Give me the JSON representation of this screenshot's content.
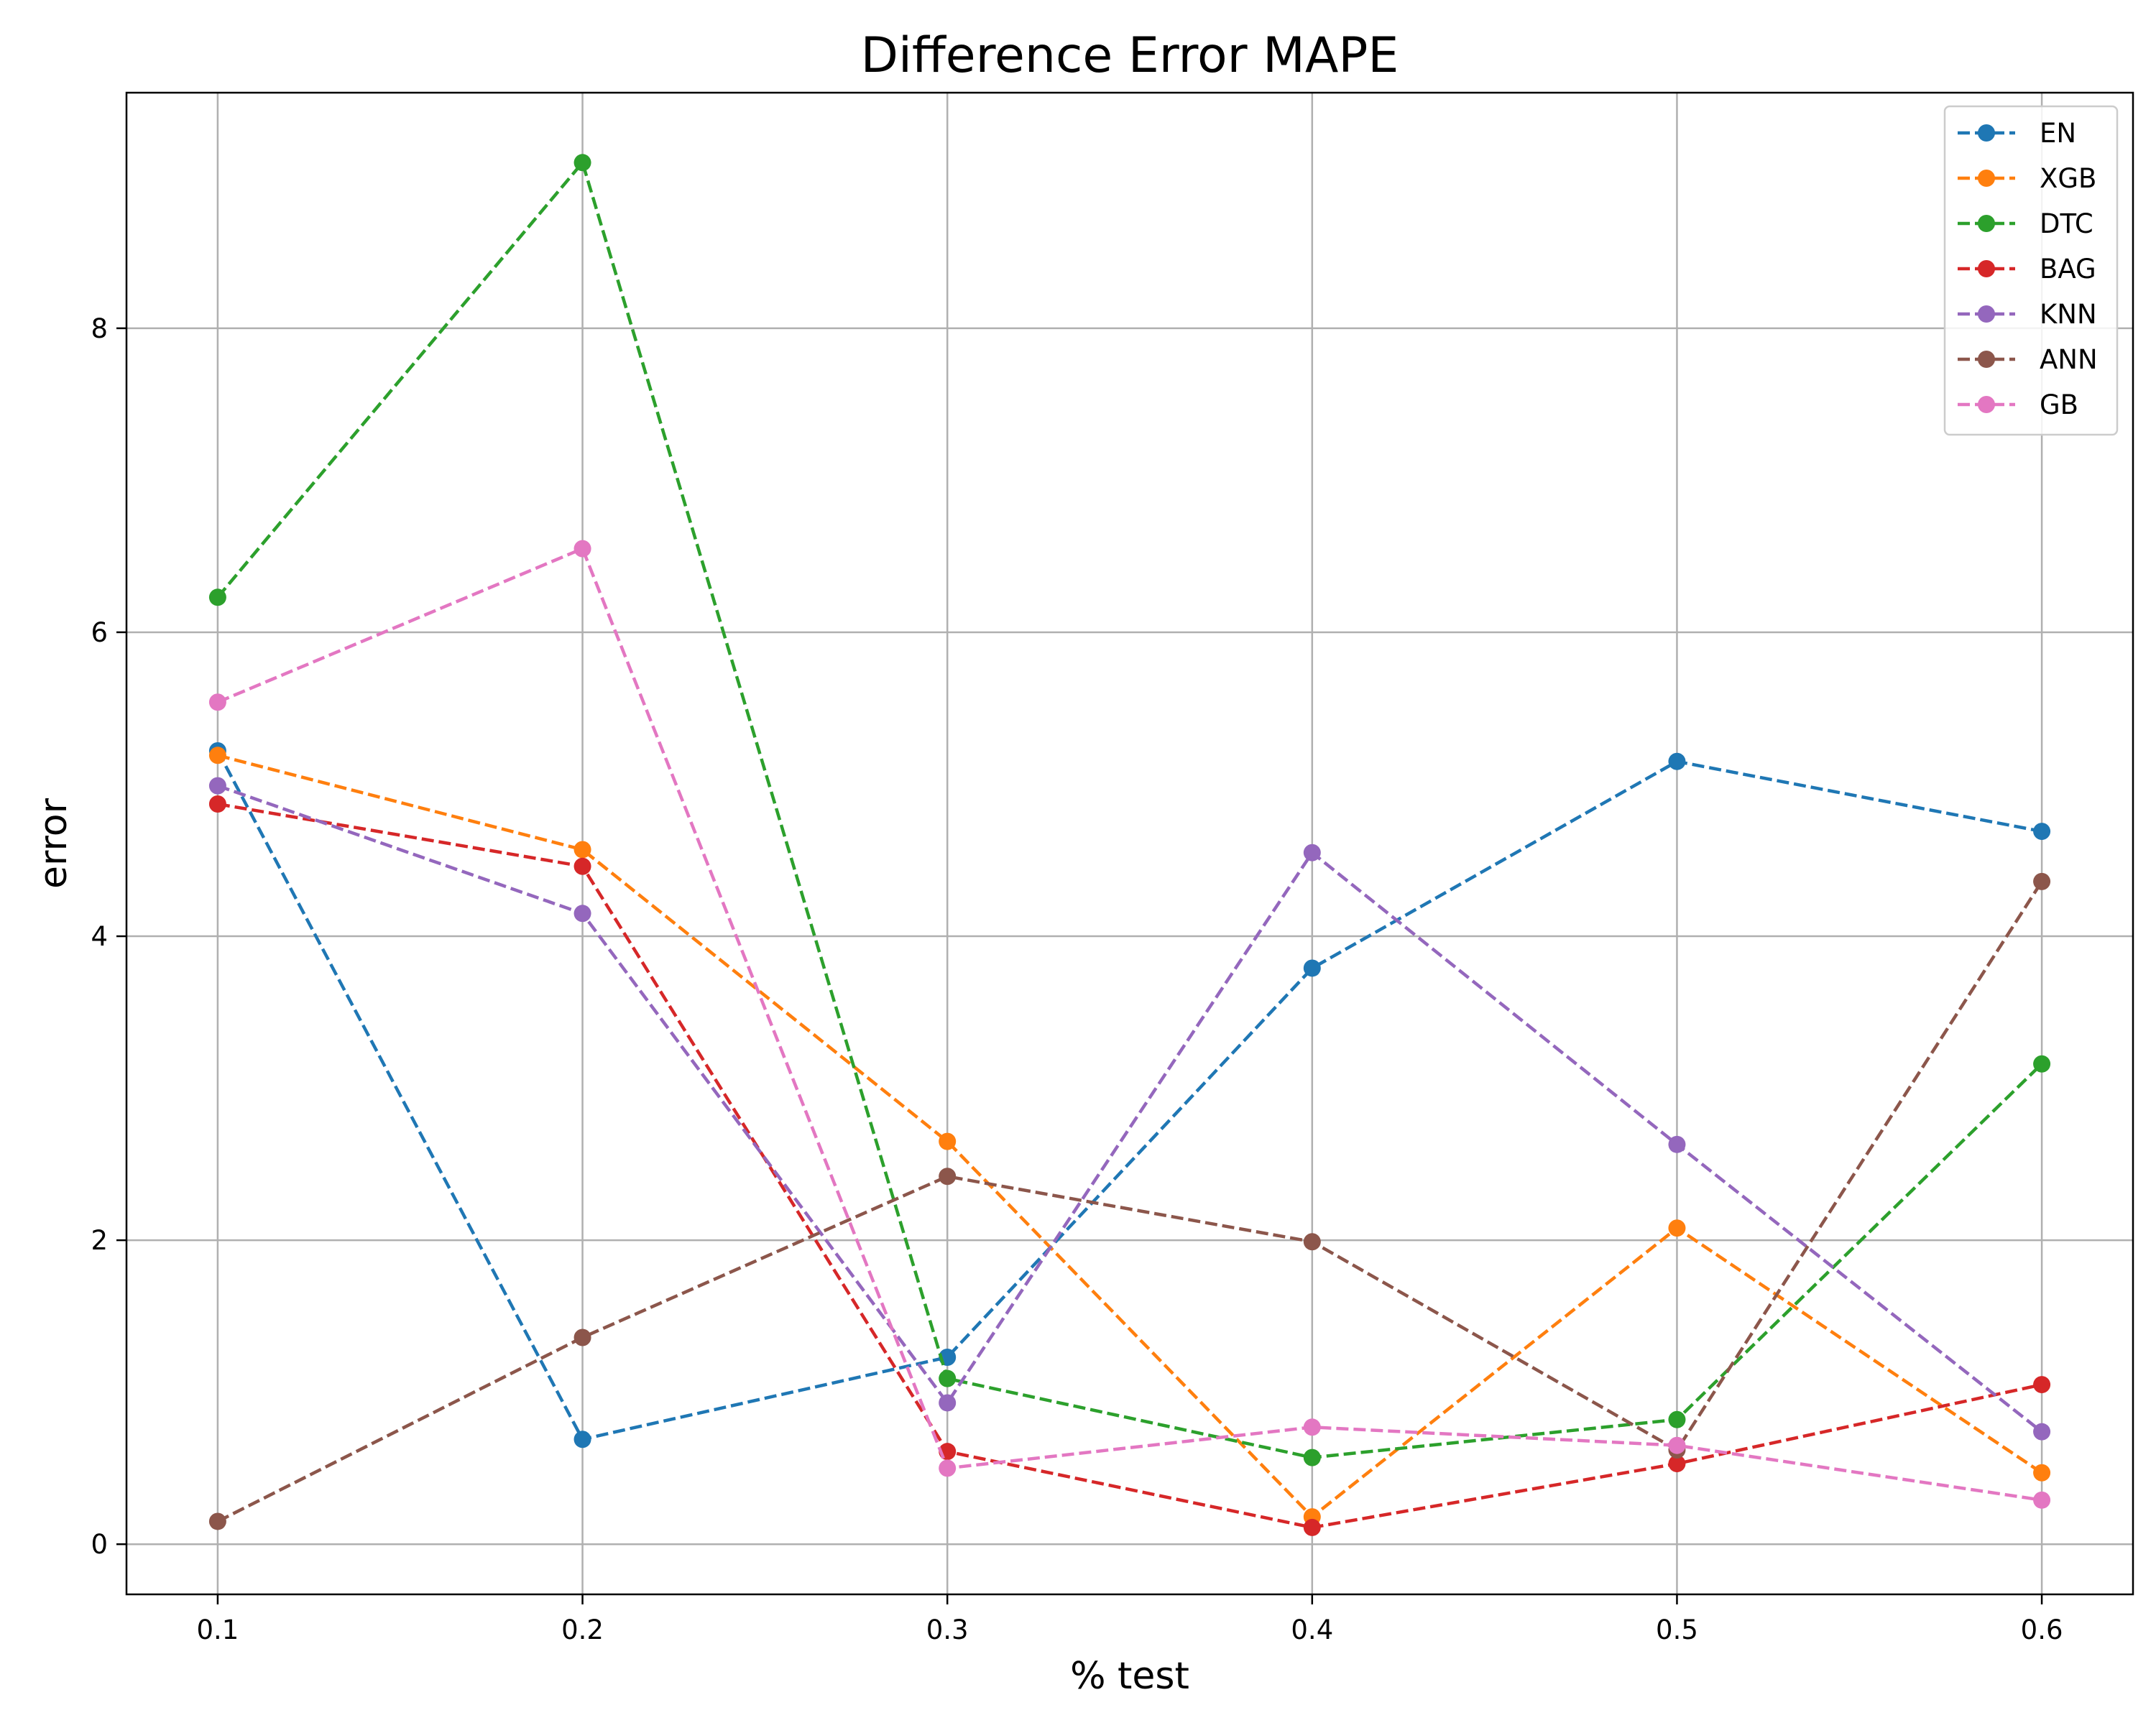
{
  "chart_data": {
    "type": "line",
    "title": "Difference Error MAPE",
    "xlabel": "% test",
    "ylabel": "error",
    "x": [
      0.1,
      0.2,
      0.3,
      0.4,
      0.5,
      0.6
    ],
    "xlim": [
      0.075,
      0.625
    ],
    "ylim": [
      -0.33,
      9.55
    ],
    "xticks": [
      0.1,
      0.2,
      0.3,
      0.4,
      0.5,
      0.6
    ],
    "xtick_labels": [
      "0.1",
      "0.2",
      "0.3",
      "0.4",
      "0.5",
      "0.6"
    ],
    "yticks": [
      0,
      2,
      4,
      6,
      8
    ],
    "ytick_labels": [
      "0",
      "2",
      "4",
      "6",
      "8"
    ],
    "grid": true,
    "legend_position": "top-right",
    "line_style": "dashed",
    "marker": "circle",
    "series": [
      {
        "name": "EN",
        "color": "#1f77b4",
        "values": [
          5.22,
          0.69,
          1.23,
          3.79,
          5.15,
          4.69
        ]
      },
      {
        "name": "XGB",
        "color": "#ff7f0e",
        "values": [
          5.19,
          4.57,
          2.65,
          0.18,
          2.08,
          0.47
        ]
      },
      {
        "name": "DTC",
        "color": "#2ca02c",
        "values": [
          6.23,
          9.09,
          1.09,
          0.57,
          0.82,
          3.16
        ]
      },
      {
        "name": "BAG",
        "color": "#d62728",
        "values": [
          4.87,
          4.46,
          0.61,
          0.11,
          0.53,
          1.05
        ]
      },
      {
        "name": "KNN",
        "color": "#9467bd",
        "values": [
          4.99,
          4.15,
          0.93,
          4.55,
          2.63,
          0.74
        ]
      },
      {
        "name": "ANN",
        "color": "#8c564b",
        "values": [
          0.15,
          1.36,
          2.42,
          1.99,
          0.62,
          4.36
        ]
      },
      {
        "name": "GB",
        "color": "#e377c2",
        "values": [
          5.54,
          6.55,
          0.5,
          0.77,
          0.65,
          0.29
        ]
      }
    ]
  }
}
